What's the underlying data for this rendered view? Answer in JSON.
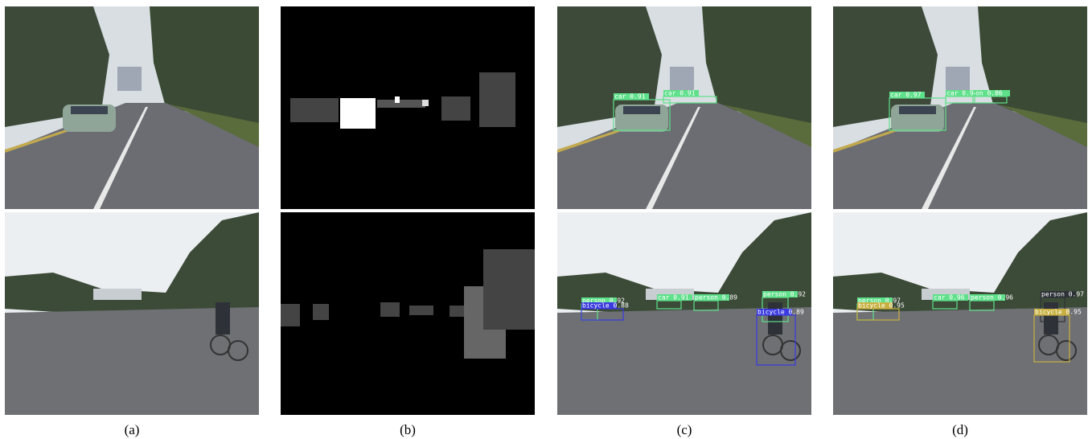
{
  "panels": [
    {
      "caption": "(a)",
      "detections": [
        [],
        []
      ]
    },
    {
      "caption": "(b)",
      "detections": [
        [],
        []
      ]
    },
    {
      "caption": "(c)",
      "detections": [
        [
          "car 0.91",
          "car 0.91"
        ],
        [
          "person 0.92",
          "bicycle 0.88",
          "car 0.91",
          "person 0.89",
          "person 0.92",
          "bicycle 0.89"
        ]
      ]
    },
    {
      "caption": "(d)",
      "detections": [
        [
          "car 0.97",
          "car 0.94 0.93",
          "on 0.86"
        ],
        [
          "person 0.97",
          "bicycle 0.95",
          "car 0.96",
          "person 0.96",
          "person 0.97",
          "bicycle 0.95"
        ]
      ]
    }
  ]
}
